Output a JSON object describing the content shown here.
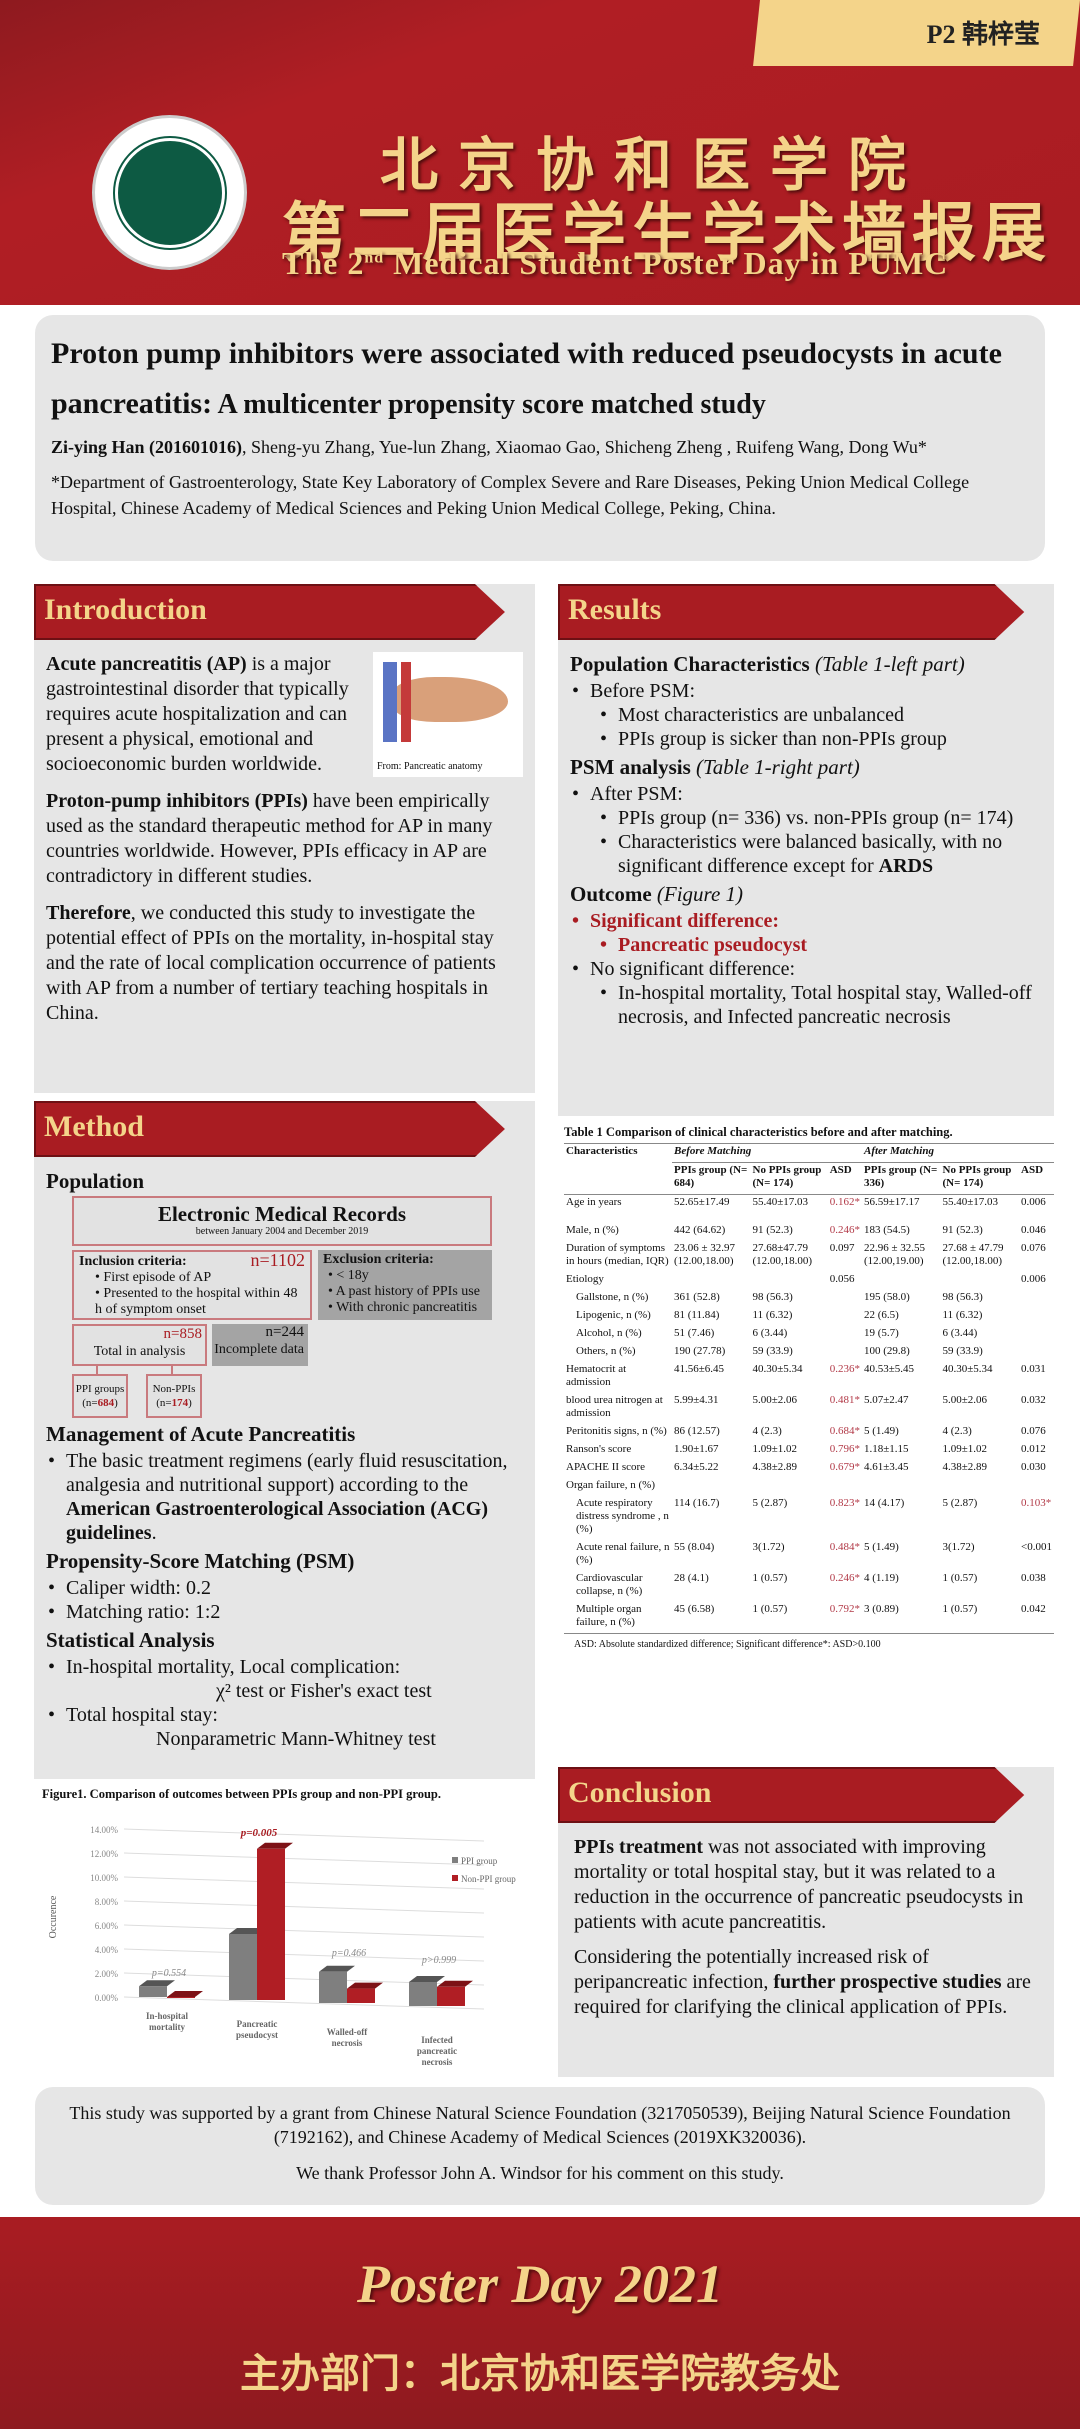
{
  "header": {
    "tag": "P2  韩梓莹",
    "cn_school": "北京协和医学院",
    "cn_event": "第二届医学生学术墙报展",
    "en_pre": "The 2",
    "en_sup": "nd",
    "en_post": " Medical Student Poster Day in PUMC",
    "logo_text": "CHINESE ACADEMY OF MEDICAL SCIENCES · PEKING UNION MEDICAL COLLEGE"
  },
  "title": {
    "main": "Proton pump inhibitors were associated with reduced pseudocysts in acute pancreatitis:",
    "sub": " A multicenter propensity score matched study",
    "first_author": "Zi-ying Han (201601016)",
    "authors": ", Sheng-yu Zhang, Yue-lun Zhang, Xiaomao Gao, Shicheng Zheng , Ruifeng Wang, Dong Wu*",
    "affiliation": "*Department of Gastroenterology, State Key Laboratory of Complex Severe and Rare Diseases, Peking Union Medical College Hospital, Chinese Academy of Medical Sciences and Peking Union Medical College, Peking, China."
  },
  "intro": {
    "heading": "Introduction",
    "p1_bold": "Acute pancreatitis (AP)",
    "p1": " is a major gastrointestinal disorder that typically requires acute hospitalization and can present a physical, emotional and socioeconomic burden worldwide.",
    "img_caption": "From: Pancreatic anatomy",
    "p2_bold": "Proton-pump inhibitors (PPIs)",
    "p2": " have been empirically used as the standard therapeutic method for AP in many countries worldwide. However, PPIs efficacy in AP are contradictory in different studies.",
    "p3_bold": "Therefore",
    "p3": ", we conducted this study to investigate the potential effect of PPIs on the mortality, in-hospital stay and the rate of local complication occurrence of patients with AP from a number of tertiary teaching hospitals in China."
  },
  "method": {
    "heading": "Method",
    "population": "Population",
    "flow": {
      "emr": "Electronic Medical Records",
      "emr_sub": "between January 2004 and December 2019",
      "incl_title": "Inclusion criteria:",
      "incl_n": "n=1102",
      "incl": [
        "First episode of AP",
        "Presented to the hospital within 48 h of symptom onset"
      ],
      "excl_title": "Exclusion criteria:",
      "excl": [
        "< 18y",
        "A past history of PPIs use",
        "With chronic pancreatitis"
      ],
      "total_n": "n=858",
      "total": "Total in analysis",
      "incomplete_n": "n=244",
      "incomplete": "Incomplete data",
      "ppi": "PPI groups",
      "ppi_n": "684",
      "nonppi": "Non-PPIs",
      "nonppi_n": "174"
    },
    "mgmt_title": "Management of Acute Pancreatitis",
    "mgmt": "The basic treatment regimens (early fluid resuscitation, analgesia and nutritional support) according to the ",
    "mgmt_bold": "American Gastroenterological Association (ACG) guidelines",
    "mgmt_end": ".",
    "psm_title": "Propensity-Score Matching (PSM)",
    "psm": [
      "Caliper width: 0.2",
      "Matching ratio: 1:2"
    ],
    "stat_title": "Statistical Analysis",
    "stat1": "In-hospital mortality, Local complication:",
    "stat1b": "χ² test or Fisher's exact test",
    "stat2": "Total hospital stay:",
    "stat2b": "Nonparametric Mann-Whitney test"
  },
  "chart_data": {
    "type": "bar",
    "title": "Figure1. Comparison of outcomes between PPIs group and non-PPI group.",
    "ylabel": "Occurence",
    "ylim": [
      0,
      14
    ],
    "yticks": [
      "0.00%",
      "2.00%",
      "4.00%",
      "6.00%",
      "8.00%",
      "10.00%",
      "12.00%",
      "14.00%"
    ],
    "categories": [
      "In-hospital mortality",
      "Pancreatic pseudocyst",
      "Walled-off necrosis",
      "Infected pancreatic necrosis"
    ],
    "series": [
      {
        "name": "PPI group",
        "color": "#7f7f7f",
        "values": [
          0.9,
          5.5,
          2.6,
          2.0
        ]
      },
      {
        "name": "Non-PPI group",
        "color": "#b01e24",
        "values": [
          0.0,
          12.6,
          1.2,
          1.6
        ]
      }
    ],
    "pvalues": [
      "p=0.554",
      "p=0.005",
      "p=0.466",
      "p>0.999"
    ],
    "legend": "right",
    "grid": true
  },
  "results": {
    "heading": "Results",
    "pop_title": "Population Characteristics",
    "pop_ref": "(Table 1-left part)",
    "pop1": "Before PSM:",
    "pop2": [
      "Most characteristics are unbalanced",
      "PPIs group is sicker than non-PPIs group"
    ],
    "psm_title": "PSM analysis",
    "psm_ref": "(Table 1-right part)",
    "psm1": "After PSM:",
    "psm2a": "PPIs group (n= 336)  vs. non-PPIs group (n= 174)",
    "psm2b": "Characteristics were balanced basically, with no significant difference except for ",
    "psm2b_bold": "ARDS",
    "out_title": "Outcome",
    "out_ref": "(Figure 1)",
    "sig": "Significant difference:",
    "sig_item": "Pancreatic pseudocyst",
    "nosig": "No significant difference:",
    "nosig_item": "In-hospital mortality, Total hospital stay, Walled-off necrosis, and Infected pancreatic necrosis"
  },
  "table": {
    "caption": "Table 1 Comparison of clinical characteristics before and after matching.",
    "h_char": "Characteristics",
    "h_before": "Before Matching",
    "h_after": "After Matching",
    "cols": [
      "PPIs group (N= 684)",
      "No PPIs group (N= 174)",
      "ASD",
      "PPIs group (N= 336)",
      "No PPIs group (N= 174)",
      "ASD"
    ],
    "rows": [
      [
        "Age in years",
        "52.65±17.49",
        "55.40±17.03",
        "0.162*",
        "56.59±17.17",
        "55.40±17.03",
        "0.006"
      ],
      [
        "Male, n (%)",
        "442 (64.62)",
        "91 (52.3)",
        "0.246*",
        "183 (54.5)",
        "91 (52.3)",
        "0.046"
      ],
      [
        "Duration of symptoms in hours (median, IQR)",
        "23.06 ± 32.97 (12.00,18.00)",
        "27.68±47.79 (12.00,18.00)",
        "0.097",
        "22.96 ± 32.55 (12.00,19.00)",
        "27.68 ± 47.79 (12.00,18.00)",
        "0.076"
      ],
      [
        "Etiology",
        "",
        "",
        "0.056",
        "",
        "",
        "0.006"
      ],
      [
        "Gallstone, n (%)",
        "361 (52.8)",
        "98 (56.3)",
        "",
        "195 (58.0)",
        "98 (56.3)",
        ""
      ],
      [
        "Lipogenic, n (%)",
        "81 (11.84)",
        "11 (6.32)",
        "",
        "22 (6.5)",
        "11 (6.32)",
        ""
      ],
      [
        "Alcohol, n (%)",
        "51 (7.46)",
        "6 (3.44)",
        "",
        "19 (5.7)",
        "6 (3.44)",
        ""
      ],
      [
        "Others, n (%)",
        "190 (27.78)",
        "59 (33.9)",
        "",
        "100 (29.8)",
        "59 (33.9)",
        ""
      ],
      [
        "Hematocrit at admission",
        "41.56±6.45",
        "40.30±5.34",
        "0.236*",
        "40.53±5.45",
        "40.30±5.34",
        "0.031"
      ],
      [
        "blood urea nitrogen at admission",
        "5.99±4.31",
        "5.00±2.06",
        "0.481*",
        "5.07±2.47",
        "5.00±2.06",
        "0.032"
      ],
      [
        "Peritonitis signs, n (%)",
        "86 (12.57)",
        "4 (2.3)",
        "0.684*",
        "5 (1.49)",
        "4 (2.3)",
        "0.076"
      ],
      [
        "Ranson's score",
        "1.90±1.67",
        "1.09±1.02",
        "0.796*",
        "1.18±1.15",
        "1.09±1.02",
        "0.012"
      ],
      [
        "APACHE II score",
        "6.34±5.22",
        "4.38±2.89",
        "0.679*",
        "4.61±3.45",
        "4.38±2.89",
        "0.030"
      ],
      [
        "Organ failure, n (%)",
        "",
        "",
        "",
        "",
        "",
        ""
      ],
      [
        "Acute respiratory distress syndrome , n (%)",
        "114 (16.7)",
        "5 (2.87)",
        "0.823*",
        "14 (4.17)",
        "5 (2.87)",
        "0.103*"
      ],
      [
        "Acute renal failure, n (%)",
        "55 (8.04)",
        "3(1.72)",
        "0.484*",
        "5 (1.49)",
        "3(1.72)",
        "<0.001"
      ],
      [
        "Cardiovascular collapse, n (%)",
        "28 (4.1)",
        "1 (0.57)",
        "0.246*",
        "4 (1.19)",
        "1 (0.57)",
        "0.038"
      ],
      [
        "Multiple organ failure, n (%)",
        "45 (6.58)",
        "1 (0.57)",
        "0.792*",
        "3 (0.89)",
        "1 (0.57)",
        "0.042"
      ]
    ],
    "note": "ASD: Absolute standardized difference; Significant difference*: ASD>0.100"
  },
  "conclusion": {
    "heading": "Conclusion",
    "p1_bold": "PPIs treatment",
    "p1": " was not associated with improving mortality or total hospital stay, but it was related to a reduction in the occurrence of pancreatic pseudocysts in patients with acute pancreatitis.",
    "p2": "Considering the potentially increased risk of peripancreatic infection, ",
    "p2_bold": "further prospective studies",
    "p2_end": " are required for clarifying the clinical application of PPIs."
  },
  "ack": {
    "funding": "This study was supported by a grant from Chinese Natural Science Foundation (3217050539), Beijing Natural Science Foundation (7192162), and Chinese Academy of Medical Sciences (2019XK320036).",
    "thanks": "We thank Professor John A. Windsor for his comment on this study."
  },
  "footer": {
    "event": "Poster Day 2021",
    "organizer": "主办部门：北京协和医学院教务处"
  }
}
